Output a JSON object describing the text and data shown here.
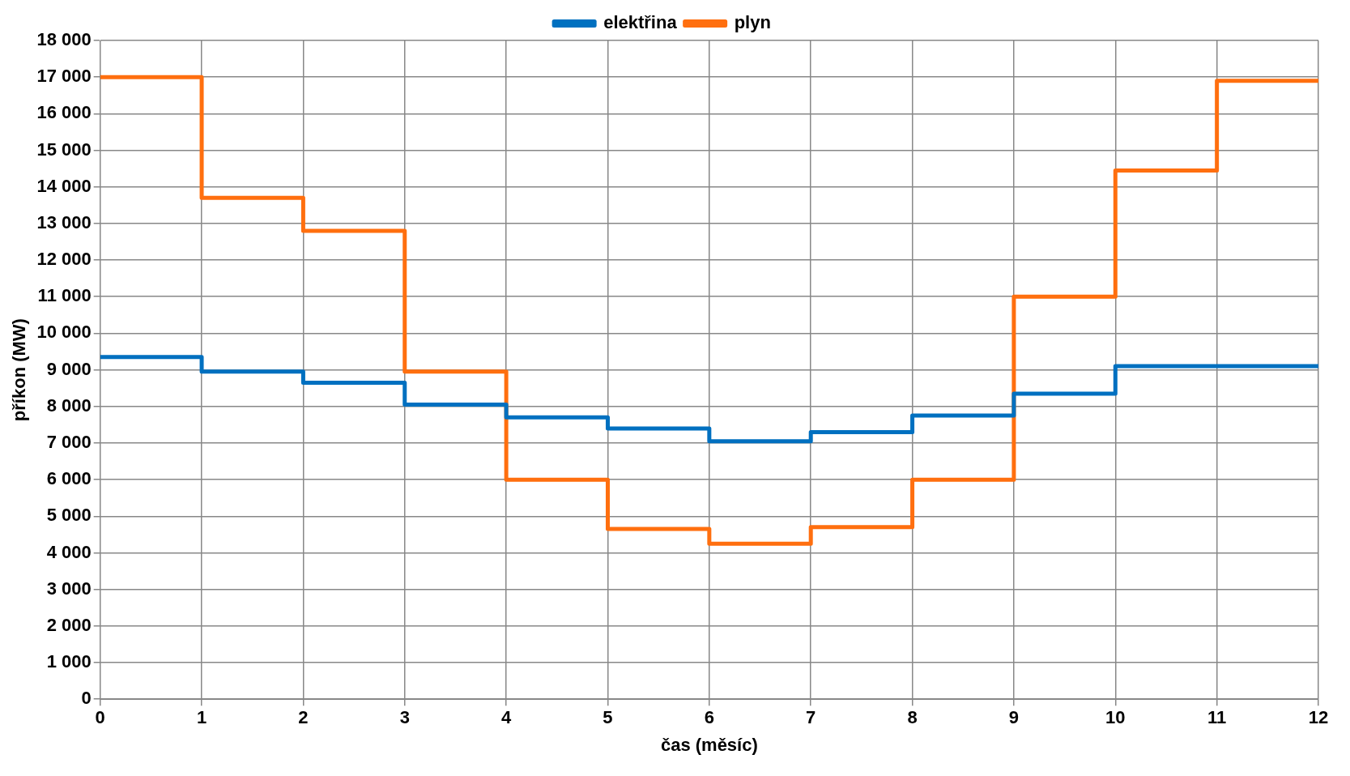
{
  "chart_data": {
    "type": "step",
    "xlabel": "čas (měsíc)",
    "ylabel": "příkon (MW)",
    "x": [
      0,
      1,
      2,
      3,
      4,
      5,
      6,
      7,
      8,
      9,
      10,
      11,
      12
    ],
    "series": [
      {
        "name": "elektřina",
        "color": "#0070c0",
        "values": [
          9350,
          8950,
          8650,
          8050,
          7700,
          7400,
          7050,
          7300,
          7750,
          8350,
          9100,
          9100,
          9100
        ]
      },
      {
        "name": "plyn",
        "color": "#ff6f0f",
        "values": [
          17000,
          13700,
          12800,
          8950,
          6000,
          4650,
          4250,
          4700,
          6000,
          11000,
          14450,
          16900,
          16900
        ]
      }
    ],
    "xlim": [
      0,
      12
    ],
    "xticks": [
      0,
      1,
      2,
      3,
      4,
      5,
      6,
      7,
      8,
      9,
      10,
      11,
      12
    ],
    "ylim": [
      0,
      18000
    ],
    "yticks": [
      0,
      {
        "value": 1000,
        "label": "1 000"
      },
      {
        "value": 2000,
        "label": "2 000"
      },
      {
        "value": 3000,
        "label": "3 000"
      },
      {
        "value": 4000,
        "label": "4 000"
      },
      {
        "value": 5000,
        "label": "5 000"
      },
      {
        "value": 6000,
        "label": "6 000"
      },
      {
        "value": 7000,
        "label": "7 000"
      },
      {
        "value": 8000,
        "label": "8 000"
      },
      {
        "value": 9000,
        "label": "9 000"
      },
      {
        "value": 10000,
        "label": "10 000"
      },
      {
        "value": 11000,
        "label": "11 000"
      },
      {
        "value": 12000,
        "label": "12 000"
      },
      {
        "value": 13000,
        "label": "13 000"
      },
      {
        "value": 14000,
        "label": "14 000"
      },
      {
        "value": 15000,
        "label": "15 000"
      },
      {
        "value": 16000,
        "label": "16 000"
      },
      {
        "value": 17000,
        "label": "17 000"
      },
      {
        "value": 18000,
        "label": "18 000"
      }
    ],
    "grid": true,
    "legend": "top",
    "line_style": "solid",
    "marker": "none"
  }
}
